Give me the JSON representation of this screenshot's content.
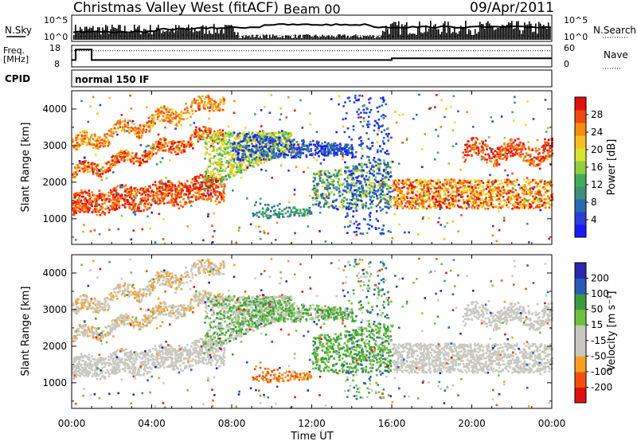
{
  "header": {
    "station": "Christmas Valley West (fitACF)",
    "beam": "Beam 00",
    "date": "09/Apr/2011"
  },
  "colors": {
    "power_scale": [
      "#1a1aff",
      "#2a3fd6",
      "#2a6ab0",
      "#3f8f7a",
      "#3fae5a",
      "#8fd040",
      "#d8e430",
      "#f7c020",
      "#f78a10",
      "#f34a10",
      "#e01010"
    ],
    "velocity_scale": [
      "#e01010",
      "#f35010",
      "#f7a020",
      "#c8c8c0",
      "#c8c8c0",
      "#70c040",
      "#3a9a40",
      "#2a5ab8",
      "#2828b0"
    ]
  },
  "chart_data": [
    {
      "type": "line",
      "panel": "noise",
      "labels_left": [
        "N.Sky"
      ],
      "labels_right": [
        "N.Search"
      ],
      "left_ticks": [
        "10^5",
        "10^0"
      ],
      "right_ticks": [
        "10^5",
        "10^0"
      ],
      "legend": [
        {
          "name": "N.Sky",
          "style": "solid"
        },
        {
          "name": "N.Search",
          "style": "dotted"
        }
      ]
    },
    {
      "type": "line",
      "panel": "frequency",
      "ylabel": "Freq. [MHz]",
      "left_ticks": [
        18,
        8
      ],
      "right_ticks": [
        60,
        0
      ],
      "right_label": "Nave",
      "freq_series": {
        "x_hours": [
          0,
          0.2,
          0.2,
          1.0,
          1.0,
          16.0,
          16.0,
          24.0
        ],
        "values": [
          11,
          11,
          17,
          17,
          11,
          11,
          12,
          12
        ]
      },
      "nave_series": {
        "x_hours": [
          0,
          24
        ],
        "values": [
          50,
          50
        ]
      }
    },
    {
      "type": "table",
      "panel": "cpid",
      "label": "CPID",
      "mode": "normal 150 IF"
    },
    {
      "type": "heatmap",
      "panel": "power",
      "ylabel": "Slant Range [km]",
      "ylim": [
        300,
        4500
      ],
      "yticks": [
        1000,
        2000,
        3000,
        4000
      ],
      "colorbar_label": "Power [dB]",
      "colorbar_ticks": [
        4,
        8,
        12,
        16,
        20,
        24,
        28
      ],
      "colorbar_range": [
        0,
        32
      ]
    },
    {
      "type": "heatmap",
      "panel": "velocity",
      "ylabel": "Slant Range [km]",
      "xlabel": "Time UT",
      "ylim": [
        300,
        4500
      ],
      "yticks": [
        1000,
        2000,
        3000,
        4000
      ],
      "xlim_hours": [
        0,
        24
      ],
      "xticks": [
        "00:00",
        "04:00",
        "08:00",
        "12:00",
        "16:00",
        "20:00",
        "00:00"
      ],
      "colorbar_label": "Velocity [m s⁻¹]",
      "colorbar_ticks": [
        200,
        100,
        50,
        15,
        -15,
        -50,
        -100,
        -200
      ]
    }
  ]
}
